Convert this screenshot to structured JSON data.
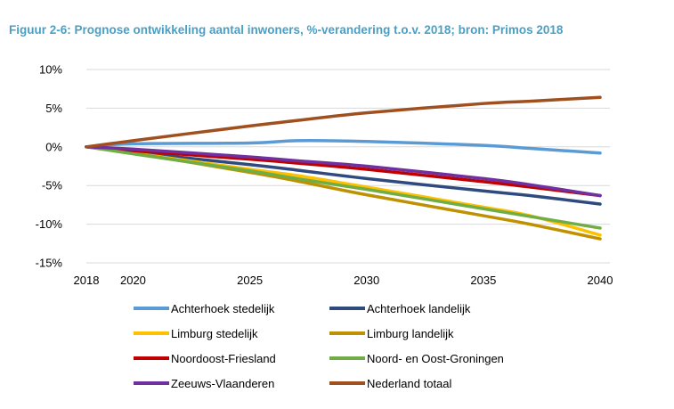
{
  "chart_data": {
    "type": "line",
    "title": "Figuur 2-6: Prognose ontwikkeling aantal inwoners, %-verandering t.o.v. 2018; bron: Primos 2018",
    "xlabel": "",
    "ylabel": "",
    "x": [
      2018,
      2020,
      2025,
      2027,
      2030,
      2035,
      2037,
      2040
    ],
    "x_ticks": [
      2018,
      2020,
      2025,
      2030,
      2035,
      2040
    ],
    "y_ticks": [
      10,
      5,
      0,
      -5,
      -10,
      -15
    ],
    "y_tick_labels": [
      "10%",
      "5%",
      "0%",
      "-5%",
      "-10%",
      "-15%"
    ],
    "ylim": [
      -15,
      10
    ],
    "grid": true,
    "legend_position": "bottom",
    "series": [
      {
        "name": "Achterhoek stedelijk",
        "color": "#5b9bd5",
        "values": [
          0,
          0.4,
          0.5,
          0.8,
          0.7,
          0.2,
          -0.2,
          -0.8
        ]
      },
      {
        "name": "Achterhoek landelijk",
        "color": "#2e4a7e",
        "values": [
          0,
          -0.7,
          -2.3,
          -3.0,
          -4.1,
          -5.7,
          -6.3,
          -7.4
        ]
      },
      {
        "name": "Limburg stedelijk",
        "color": "#ffc000",
        "values": [
          0,
          -0.8,
          -2.9,
          -3.7,
          -5.2,
          -7.8,
          -8.9,
          -11.4
        ]
      },
      {
        "name": "Limburg landelijk",
        "color": "#bf9000",
        "values": [
          0,
          -0.8,
          -3.3,
          -4.4,
          -6.2,
          -8.9,
          -10.0,
          -11.9
        ]
      },
      {
        "name": "Noordoost-Friesland",
        "color": "#c00000",
        "values": [
          0,
          -0.5,
          -1.6,
          -2.1,
          -2.9,
          -4.5,
          -5.2,
          -6.3
        ]
      },
      {
        "name": "Noord- en Oost-Groningen",
        "color": "#70ad47",
        "values": [
          0,
          -0.9,
          -3.1,
          -4.1,
          -5.5,
          -8.0,
          -9.0,
          -10.5
        ]
      },
      {
        "name": "Zeeuws-Vlaanderen",
        "color": "#7030a0",
        "values": [
          0,
          -0.3,
          -1.3,
          -1.8,
          -2.5,
          -4.1,
          -4.9,
          -6.3
        ]
      },
      {
        "name": "Nederland totaal",
        "color": "#a0501e",
        "values": [
          0,
          0.8,
          2.7,
          3.4,
          4.4,
          5.6,
          5.9,
          6.4
        ]
      }
    ]
  }
}
